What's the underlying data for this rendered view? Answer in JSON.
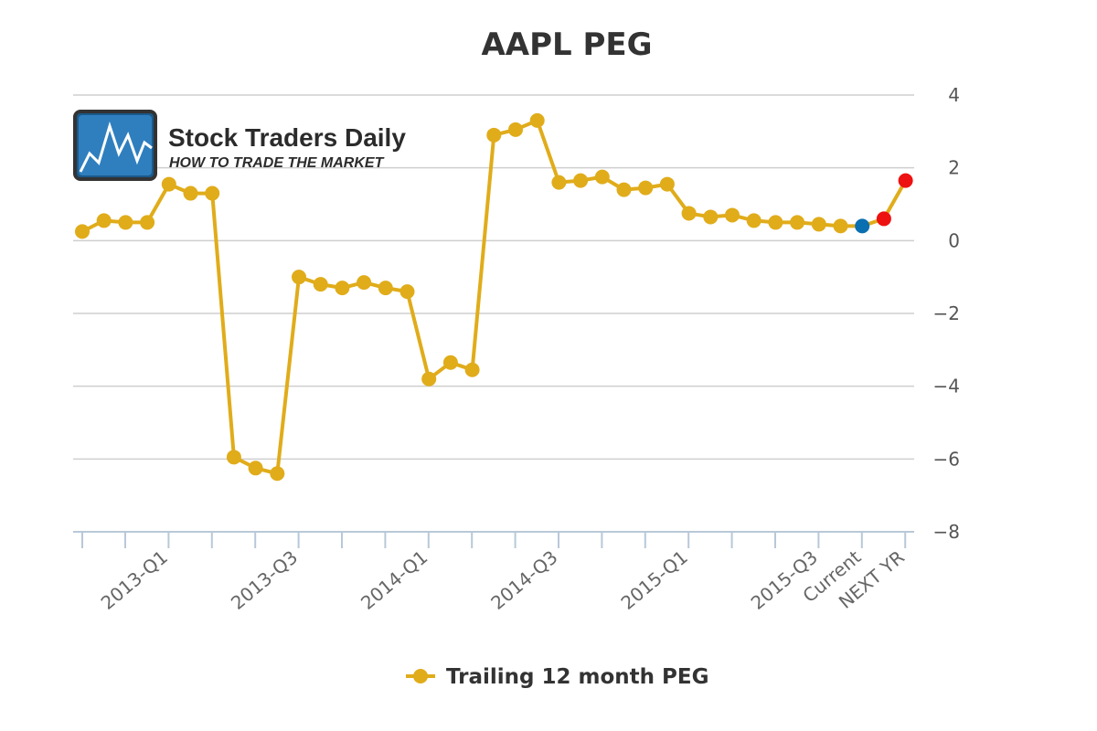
{
  "chart_data": {
    "type": "line",
    "title": "AAPL PEG",
    "xlabel": "",
    "ylabel": "",
    "ylim": [
      -8,
      4
    ],
    "yticks": [
      4,
      2,
      0,
      -2,
      -4,
      -6,
      -8
    ],
    "ytick_labels": [
      "4",
      "2",
      "0",
      "−2",
      "−4",
      "−6",
      "−8"
    ],
    "grid": true,
    "legend_position": "bottom-center",
    "x_label_indices": [
      4,
      10,
      16,
      22,
      28,
      34,
      36,
      38
    ],
    "categories": [
      "",
      "",
      "",
      "",
      "2013-Q1",
      "",
      "",
      "",
      "",
      "",
      "2013-Q3",
      "",
      "",
      "",
      "",
      "",
      "2014-Q1",
      "",
      "",
      "",
      "",
      "",
      "2014-Q3",
      "",
      "",
      "",
      "",
      "",
      "2015-Q1",
      "",
      "",
      "",
      "",
      "",
      "2015-Q3",
      "",
      "Current",
      "",
      "NEXT YR"
    ],
    "series": [
      {
        "name": "Trailing 12 month PEG",
        "color": "#e0ac1a",
        "values": [
          0.25,
          0.55,
          0.5,
          0.5,
          1.55,
          1.3,
          1.3,
          -5.95,
          -6.25,
          -6.4,
          -1.0,
          -1.2,
          -1.3,
          -1.15,
          -1.3,
          -1.4,
          -3.8,
          -3.35,
          -3.55,
          2.9,
          3.05,
          3.3,
          1.6,
          1.65,
          1.75,
          1.4,
          1.45,
          1.55,
          0.75,
          0.65,
          0.7,
          0.55,
          0.5,
          0.5,
          0.45,
          0.4,
          0.4,
          0.6,
          1.65
        ],
        "point_colors": {
          "36": "#0a6fb0",
          "37": "#ee1111",
          "38": "#ee1111"
        }
      }
    ]
  },
  "logo": {
    "title": "Stock Traders Daily",
    "subtitle": "HOW TO TRADE THE MARKET"
  }
}
